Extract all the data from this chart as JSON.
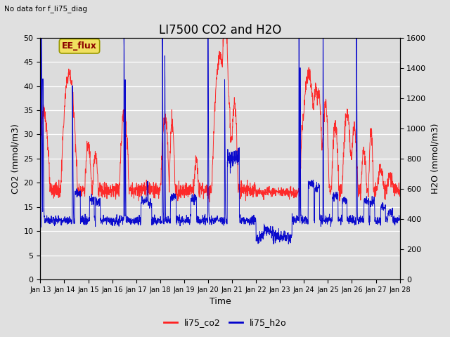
{
  "title": "LI7500 CO2 and H2O",
  "subtitle": "No data for f_li75_diag",
  "xlabel": "Time",
  "ylabel_left": "CO2 (mmol/m3)",
  "ylabel_right": "H2O (mmol/m3)",
  "ylim_left": [
    0,
    50
  ],
  "ylim_right": [
    0,
    1600
  ],
  "annotation_text": "EE_flux",
  "bg_color": "#e0e0e0",
  "plot_bg_color": "#dcdcdc",
  "co2_color": "#ff2020",
  "h2o_color": "#0000cc",
  "legend_entries": [
    "li75_co2",
    "li75_h2o"
  ],
  "xtick_labels": [
    "Jan 13",
    "Jan 14",
    "Jan 15",
    "Jan 16",
    "Jan 17",
    "Jan 18",
    "Jan 19",
    "Jan 20",
    "Jan 21",
    "Jan 22",
    "Jan 23",
    "Jan 24",
    "Jan 25",
    "Jan 26",
    "Jan 27",
    "Jan 28"
  ],
  "yticks_left": [
    0,
    5,
    10,
    15,
    20,
    25,
    30,
    35,
    40,
    45,
    50
  ],
  "yticks_right": [
    0,
    200,
    400,
    600,
    800,
    1000,
    1200,
    1400,
    1600
  ],
  "num_points": 2000,
  "seed": 123
}
